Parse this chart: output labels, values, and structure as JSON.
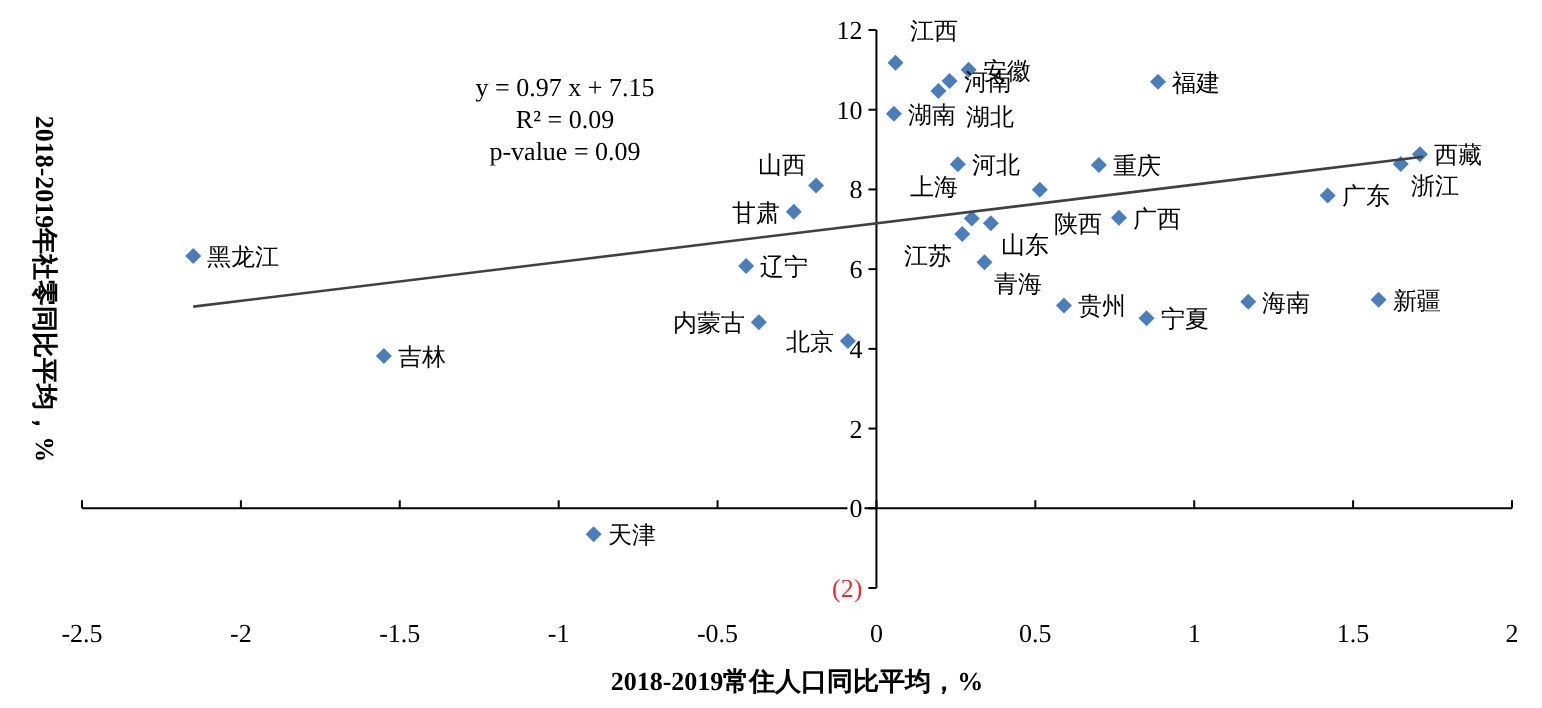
{
  "chart_data": {
    "type": "scatter",
    "xlabel": "2018-2019常住人口同比平均，%",
    "ylabel": "2018-2019年社零同比平均，%",
    "annotations": [
      "y = 0.97 x + 7.15",
      "R² = 0.09",
      "p-value = 0.09"
    ],
    "xlim": [
      -2.5,
      2
    ],
    "xticks": [
      -2.5,
      -2,
      -1.5,
      -1,
      -0.5,
      0,
      0.5,
      1,
      1.5,
      2
    ],
    "ylim": [
      -2,
      12
    ],
    "yticks": [
      {
        "value": -2,
        "label": "(2)"
      },
      0,
      2,
      4,
      6,
      8,
      10,
      12
    ],
    "series": [
      {
        "color": "#4a7ebb",
        "marker": "diamond",
        "x": [
          -2.15,
          -1.55,
          -0.89,
          -0.41,
          -0.37,
          -0.09,
          -0.26,
          -0.19,
          0.06,
          0.055,
          0.29,
          0.195,
          0.23,
          0.886,
          0.256,
          0.7,
          0.514,
          0.763,
          1.42,
          1.65,
          1.71,
          0.3,
          0.36,
          0.27,
          0.34,
          0.59,
          0.85,
          1.17,
          1.58
        ],
        "values": [
          6.33,
          3.82,
          -0.65,
          6.08,
          4.67,
          4.2,
          7.44,
          8.1,
          11.18,
          9.9,
          11.0,
          10.47,
          10.72,
          10.7,
          8.63,
          8.61,
          7.99,
          7.29,
          7.85,
          8.64,
          8.88,
          7.27,
          7.15,
          6.88,
          6.17,
          5.09,
          4.77,
          5.18,
          5.23
        ],
        "value_labels": [
          "黑龙江",
          "吉林",
          "天津",
          "辽宁",
          "内蒙古",
          "北京",
          "甘肃",
          "山西",
          "江西",
          "湖南",
          "安徽",
          "湖北",
          "河南",
          "福建",
          "河北",
          "重庆",
          "陕西",
          "广西",
          "广东",
          "浙江",
          "西藏",
          "上海",
          "山东",
          "江苏",
          "青海",
          "贵州",
          "宁夏",
          "海南",
          "新疆"
        ]
      },
      {
        "type": "line",
        "color": "#404040",
        "x": [
          -2.15,
          1.72
        ],
        "values": [
          5.06,
          8.82
        ]
      }
    ]
  }
}
